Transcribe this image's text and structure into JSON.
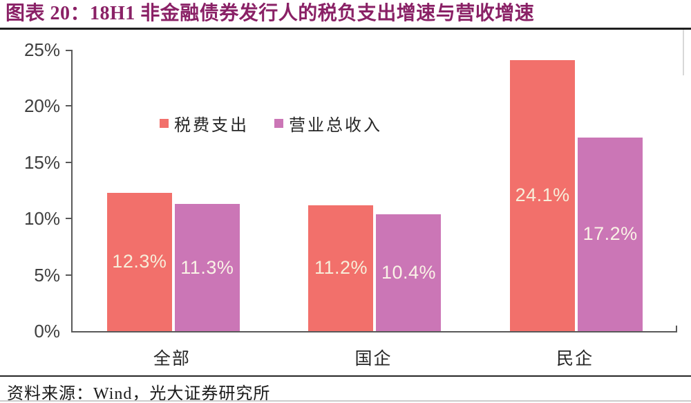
{
  "page": {
    "title": "图表 20：18H1 非金融债券发行人的税负支出增速与营收增速",
    "source_note": "资料来源：Wind，光大证券研究所"
  },
  "legend": [
    {
      "label": "税费支出",
      "color": "#F2706B"
    },
    {
      "label": "营业总收入",
      "color": "#CB76B6"
    }
  ],
  "chart_data": {
    "type": "bar",
    "title": "18H1 非金融债券发行人的税负支出增速与营收增速",
    "figure_label": "图表 20",
    "categories": [
      "全部",
      "国企",
      "民企"
    ],
    "series": [
      {
        "name": "税费支出",
        "key": "tax-expense",
        "color": "#F2706B",
        "label_color": "#F7EEDA",
        "values": [
          12.3,
          11.2,
          24.1
        ],
        "data_labels": [
          "12.3%",
          "11.2%",
          "24.1%"
        ]
      },
      {
        "name": "营业总收入",
        "key": "total-revenue",
        "color": "#CB76B6",
        "label_color": "#FAF3E6",
        "values": [
          11.3,
          10.4,
          17.2
        ],
        "data_labels": [
          "11.3%",
          "10.4%",
          "17.2%"
        ]
      }
    ],
    "xlabel": "",
    "ylabel": "",
    "ylim": [
      0,
      25
    ],
    "yticks": [
      "0%",
      "5%",
      "10%",
      "15%",
      "20%",
      "25%"
    ],
    "grid": false,
    "legend_position": "upper-left-inside"
  },
  "colors": {
    "title": "#8A2166",
    "axis": "#595959",
    "y_tick_label": "#3f3f3f",
    "category_label": "#262626",
    "title_rule": "#1f1f1f",
    "footer_rule": "#262626",
    "footer_text": "#1a1a1a",
    "background": "#ffffff"
  }
}
